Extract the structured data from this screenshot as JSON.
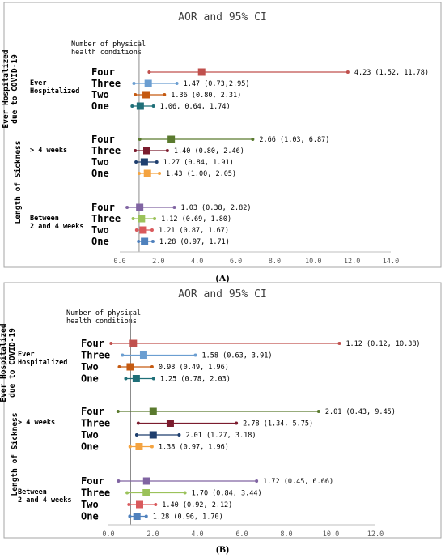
{
  "chart_data": [
    {
      "type": "forest",
      "title": "AOR and 95% CI",
      "column_header": [
        "Number of physical",
        "health conditions"
      ],
      "caption": "(A)",
      "xlim": [
        0,
        14
      ],
      "xticks": [
        "0.0",
        "2.0",
        "4.0",
        "6.0",
        "8.0",
        "10.0",
        "12.0",
        "14.0"
      ],
      "reference_line": 1,
      "side_labels": [
        {
          "lines": [
            "Ever Hospitalized",
            "due to COVID-19"
          ],
          "group": 0
        },
        {
          "lines": [
            "Length of Sickness"
          ],
          "groups": [
            1,
            2
          ]
        }
      ],
      "groups": [
        {
          "label_lines": [
            "Ever",
            "Hospitalized"
          ],
          "rows": [
            {
              "category": "Four",
              "or": 4.23,
              "lo": 1.52,
              "hi": 11.78,
              "label": "4.23 (1.52, 11.78)",
              "color": "#c0504d"
            },
            {
              "category": "Three",
              "or": 1.47,
              "lo": 0.73,
              "hi": 2.95,
              "label": "1.47 (0.73,2.95)",
              "color": "#6b9ed1"
            },
            {
              "category": "Two",
              "or": 1.36,
              "lo": 0.8,
              "hi": 2.31,
              "label": "1.36 (0.80, 2.31)",
              "color": "#c55a11"
            },
            {
              "category": "One",
              "or": 1.06,
              "lo": 0.64,
              "hi": 1.74,
              "label": "1.06, 0.64, 1.74)",
              "color": "#1f6f78"
            }
          ]
        },
        {
          "label_lines": [
            "> 4 weeks"
          ],
          "rows": [
            {
              "category": "Four",
              "or": 2.66,
              "lo": 1.03,
              "hi": 6.87,
              "label": "2.66 (1.03, 6.87)",
              "color": "#5a7a2e"
            },
            {
              "category": "Three",
              "or": 1.4,
              "lo": 0.8,
              "hi": 2.46,
              "label": "1.40 (0.80, 2.46)",
              "color": "#7b1c2e"
            },
            {
              "category": "Two",
              "or": 1.27,
              "lo": 0.84,
              "hi": 1.91,
              "label": "1.27 (0.84, 1.91)",
              "color": "#1f3f6e"
            },
            {
              "category": "One",
              "or": 1.43,
              "lo": 1.0,
              "hi": 2.05,
              "label": "1.43 (1.00, 2.05)",
              "color": "#f4a340"
            }
          ]
        },
        {
          "label_lines": [
            "Between",
            "2 and 4 weeks"
          ],
          "rows": [
            {
              "category": "Four",
              "or": 1.03,
              "lo": 0.38,
              "hi": 2.82,
              "label": "1.03 (0.38, 2.82)",
              "color": "#8064a2"
            },
            {
              "category": "Three",
              "or": 1.12,
              "lo": 0.69,
              "hi": 1.8,
              "label": "1.12 (0.69, 1.80)",
              "color": "#9bc25a"
            },
            {
              "category": "Two",
              "or": 1.21,
              "lo": 0.87,
              "hi": 1.67,
              "label": "1.21 (0.87, 1.67)",
              "color": "#d9595c"
            },
            {
              "category": "One",
              "or": 1.28,
              "lo": 0.97,
              "hi": 1.71,
              "label": "1.28 (0.97, 1.71)",
              "color": "#4f81bd"
            }
          ]
        }
      ]
    },
    {
      "type": "forest",
      "title": "AOR and 95% CI",
      "column_header": [
        "Number of physical",
        "health conditions"
      ],
      "caption": "(B)",
      "xlim": [
        0,
        12
      ],
      "xticks": [
        "0.0",
        "2.0",
        "4.0",
        "6.0",
        "8.0",
        "10.0",
        "12.0"
      ],
      "reference_line": 1,
      "side_labels": [
        {
          "lines": [
            "Ever Hospitalized",
            "due to COVID-19"
          ],
          "group": 0
        },
        {
          "lines": [
            "Length of Sickness"
          ],
          "groups": [
            1,
            2
          ]
        }
      ],
      "groups": [
        {
          "label_lines": [
            "Ever",
            "Hospitalized"
          ],
          "rows": [
            {
              "category": "Four",
              "or": 1.12,
              "lo": 0.12,
              "hi": 10.38,
              "label": "1.12 (0.12, 10.38)",
              "color": "#c0504d"
            },
            {
              "category": "Three",
              "or": 1.58,
              "lo": 0.63,
              "hi": 3.91,
              "label": "1.58 (0.63, 3.91)",
              "color": "#6b9ed1"
            },
            {
              "category": "Two",
              "or": 0.98,
              "lo": 0.49,
              "hi": 1.96,
              "label": "0.98 (0.49, 1.96)",
              "color": "#c55a11"
            },
            {
              "category": "One",
              "or": 1.25,
              "lo": 0.78,
              "hi": 2.03,
              "label": "1.25 (0.78, 2.03)",
              "color": "#1f6f78"
            }
          ]
        },
        {
          "label_lines": [
            "> 4 weeks"
          ],
          "rows": [
            {
              "category": "Four",
              "or": 2.01,
              "lo": 0.43,
              "hi": 9.45,
              "label": "2.01 (0.43, 9.45)",
              "color": "#5a7a2e"
            },
            {
              "category": "Three",
              "or": 2.78,
              "lo": 1.34,
              "hi": 5.75,
              "label": "2.78 (1.34, 5.75)",
              "color": "#7b1c2e"
            },
            {
              "category": "Two",
              "or": 2.01,
              "lo": 1.27,
              "hi": 3.18,
              "label": "2.01 (1.27, 3.18)",
              "color": "#1f3f6e"
            },
            {
              "category": "One",
              "or": 1.38,
              "lo": 0.97,
              "hi": 1.96,
              "label": "1.38 (0.97, 1.96)",
              "color": "#f4a340"
            }
          ]
        },
        {
          "label_lines": [
            "Between",
            "2 and 4 weeks"
          ],
          "rows": [
            {
              "category": "Four",
              "or": 1.72,
              "lo": 0.45,
              "hi": 6.66,
              "label": "1.72 (0.45, 6.66)",
              "color": "#8064a2"
            },
            {
              "category": "Three",
              "or": 1.7,
              "lo": 0.84,
              "hi": 3.44,
              "label": "1.70 (0.84, 3.44)",
              "color": "#9bc25a"
            },
            {
              "category": "Two",
              "or": 1.4,
              "lo": 0.92,
              "hi": 2.12,
              "label": "1.40 (0.92, 2.12)",
              "color": "#d9595c"
            },
            {
              "category": "One",
              "or": 1.28,
              "lo": 0.96,
              "hi": 1.7,
              "label": "1.28 (0.96, 1.70)",
              "color": "#4f81bd"
            }
          ]
        }
      ]
    }
  ]
}
